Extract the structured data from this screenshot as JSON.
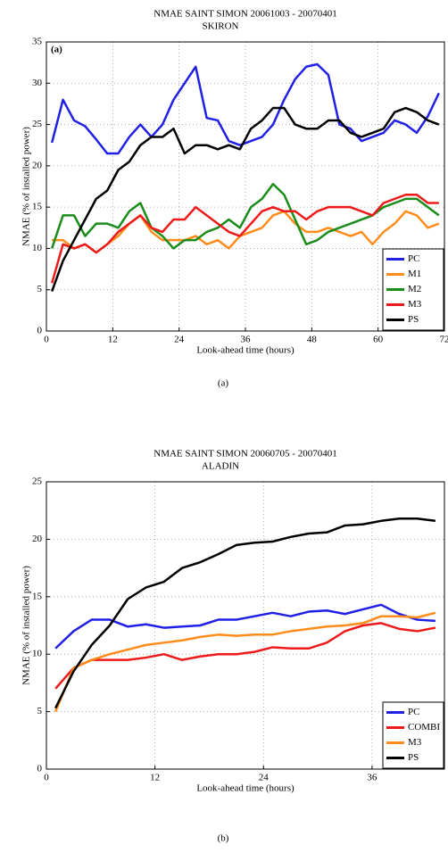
{
  "chart_data": [
    {
      "type": "line",
      "title": "NMAE SAINT SIMON 20061003 - 20070401",
      "subtitle": "SKIRON",
      "annotation": "(a)",
      "caption": "(a)",
      "xlabel": "Look-ahead time (hours)",
      "ylabel": "NMAE (% of installed power)",
      "x": [
        1,
        3,
        5,
        7,
        9,
        11,
        13,
        15,
        17,
        19,
        21,
        23,
        25,
        27,
        29,
        31,
        33,
        35,
        37,
        39,
        41,
        43,
        45,
        47,
        49,
        51,
        53,
        55,
        57,
        59,
        61,
        63,
        65,
        67,
        69,
        71
      ],
      "series": [
        {
          "name": "PC",
          "color": "#1f1fe6",
          "values": [
            22.8,
            28,
            25.5,
            24.8,
            23.2,
            21.5,
            21.5,
            23.5,
            25,
            23.5,
            25,
            28,
            30,
            32,
            25.8,
            25.5,
            23,
            22.5,
            23,
            23.5,
            25,
            28,
            30.5,
            32,
            32.3,
            31,
            25,
            24.5,
            23,
            23.5,
            24,
            25.5,
            25,
            24,
            26,
            28.8
          ]
        },
        {
          "name": "M1",
          "color": "#ff8c1a",
          "values": [
            11,
            11,
            10,
            10.5,
            9.5,
            10.5,
            11.5,
            13,
            14,
            12,
            11,
            11,
            11,
            11.5,
            10.5,
            11,
            10,
            11.5,
            12,
            12.5,
            14,
            14.5,
            13,
            12,
            12,
            12.5,
            12,
            11.5,
            12,
            10.5,
            12,
            13,
            14.5,
            14,
            12.5,
            13
          ]
        },
        {
          "name": "M2",
          "color": "#1a8c1a",
          "values": [
            10,
            14,
            14,
            11.5,
            13,
            13,
            12.5,
            14.5,
            15.5,
            12.5,
            11.5,
            10,
            11,
            11,
            12,
            12.5,
            13.5,
            12.5,
            15,
            16,
            17.8,
            16.5,
            13.5,
            10.5,
            11,
            12,
            12.5,
            13,
            13.5,
            14,
            15,
            15.5,
            16,
            16,
            15,
            14
          ]
        },
        {
          "name": "M3",
          "color": "#ee1a1a",
          "values": [
            5.8,
            10.5,
            10,
            10.5,
            9.5,
            10.5,
            12,
            13,
            14,
            12.5,
            12,
            13.5,
            13.5,
            15,
            14,
            13,
            12,
            11.5,
            13,
            14.5,
            15,
            14.5,
            14.5,
            13.5,
            14.5,
            15,
            15,
            15,
            14.5,
            14,
            15.5,
            16,
            16.5,
            16.5,
            15.5,
            15.5
          ]
        },
        {
          "name": "PS",
          "color": "#000000",
          "values": [
            4.8,
            8.5,
            11,
            13.5,
            16,
            17,
            19.5,
            20.5,
            22.5,
            23.5,
            23.5,
            24.5,
            21.5,
            22.5,
            22.5,
            22,
            22.5,
            22,
            24.5,
            25.5,
            27,
            27,
            25,
            24.5,
            24.5,
            25.5,
            25.5,
            24,
            23.5,
            24,
            24.5,
            26.5,
            27,
            26.5,
            25.5,
            25
          ]
        }
      ],
      "xlim": [
        0,
        72
      ],
      "ylim": [
        0,
        35
      ],
      "xticks": [
        0,
        12,
        24,
        36,
        48,
        60,
        72
      ],
      "yticks": [
        0,
        5,
        10,
        15,
        20,
        25,
        30,
        35
      ],
      "grid": true,
      "legend": "lower right"
    },
    {
      "type": "line",
      "title": "NMAE SAINT SIMON 20060705 - 20070401",
      "subtitle": "ALADIN",
      "caption": "(b)",
      "xlabel": "Look-ahead time (hours)",
      "ylabel": "NMAE (% of installed power)",
      "x": [
        1,
        3,
        5,
        7,
        9,
        11,
        13,
        15,
        17,
        19,
        21,
        23,
        25,
        27,
        29,
        31,
        33,
        35,
        37,
        39,
        41,
        43
      ],
      "series": [
        {
          "name": "PC",
          "color": "#1f1fe6",
          "values": [
            10.5,
            12,
            13,
            13,
            12.4,
            12.6,
            12.3,
            12.4,
            12.5,
            13,
            13,
            13.3,
            13.6,
            13.3,
            13.7,
            13.8,
            13.5,
            13.9,
            14.3,
            13.5,
            13,
            12.9
          ]
        },
        {
          "name": "COMBI",
          "color": "#ee1a1a",
          "values": [
            7,
            8.8,
            9.5,
            9.5,
            9.5,
            9.7,
            10,
            9.5,
            9.8,
            10,
            10,
            10.2,
            10.6,
            10.5,
            10.5,
            11,
            12,
            12.5,
            12.7,
            12.2,
            12,
            12.3
          ]
        },
        {
          "name": "M3",
          "color": "#ff8c1a",
          "values": [
            5,
            8.8,
            9.5,
            10,
            10.4,
            10.8,
            11,
            11.2,
            11.5,
            11.7,
            11.6,
            11.7,
            11.7,
            12,
            12.2,
            12.4,
            12.5,
            12.7,
            13.3,
            13.3,
            13.2,
            13.6
          ]
        },
        {
          "name": "PS",
          "color": "#000000",
          "values": [
            5.3,
            8.5,
            10.8,
            12.5,
            14.8,
            15.8,
            16.3,
            17.5,
            18,
            18.7,
            19.5,
            19.7,
            19.8,
            20.2,
            20.5,
            20.6,
            21.2,
            21.3,
            21.6,
            21.8,
            21.8,
            21.6
          ]
        }
      ],
      "xlim": [
        0,
        44
      ],
      "ylim": [
        0,
        25
      ],
      "xticks": [
        0,
        12,
        24,
        36
      ],
      "yticks": [
        0,
        5,
        10,
        15,
        20,
        25
      ],
      "grid": true,
      "legend": "lower right"
    }
  ]
}
